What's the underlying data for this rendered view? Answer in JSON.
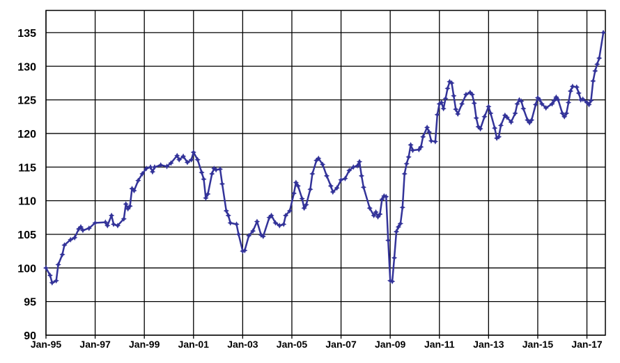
{
  "chart_data": {
    "type": "line",
    "title": "",
    "xlabel": "",
    "ylabel": "",
    "ylim": [
      90,
      138.3
    ],
    "xlim": [
      "1995-01",
      "2017-10"
    ],
    "grid": true,
    "line_color": "#333399",
    "marker": "star",
    "yticks": [
      90,
      95,
      100,
      105,
      110,
      115,
      120,
      125,
      130,
      135
    ],
    "xticks": [
      {
        "date": "1995-01",
        "label": "Jan-95"
      },
      {
        "date": "1997-01",
        "label": "Jan-97"
      },
      {
        "date": "1999-01",
        "label": "Jan-99"
      },
      {
        "date": "2001-01",
        "label": "Jan-01"
      },
      {
        "date": "2003-01",
        "label": "Jan-03"
      },
      {
        "date": "2005-01",
        "label": "Jan-05"
      },
      {
        "date": "2007-01",
        "label": "Jan-07"
      },
      {
        "date": "2009-01",
        "label": "Jan-09"
      },
      {
        "date": "2011-01",
        "label": "Jan-11"
      },
      {
        "date": "2013-01",
        "label": "Jan-13"
      },
      {
        "date": "2015-01",
        "label": "Jan-15"
      },
      {
        "date": "2017-01",
        "label": "Jan-17"
      }
    ],
    "points": [
      [
        "1995-01",
        100
      ],
      [
        "1995-03",
        98.9
      ],
      [
        "1995-04",
        97.8
      ],
      [
        "1995-06",
        98.1
      ],
      [
        "1995-07",
        100.5
      ],
      [
        "1995-09",
        102
      ],
      [
        "1995-10",
        103.4
      ],
      [
        "1996-01",
        104.2
      ],
      [
        "1996-03",
        104.5
      ],
      [
        "1996-05",
        105.8
      ],
      [
        "1996-06",
        106.1
      ],
      [
        "1996-07",
        105.6
      ],
      [
        "1996-10",
        105.9
      ],
      [
        "1997-01",
        106.7
      ],
      [
        "1997-06",
        106.8
      ],
      [
        "1997-07",
        106.3
      ],
      [
        "1997-09",
        107.8
      ],
      [
        "1997-10",
        106.5
      ],
      [
        "1997-12",
        106.3
      ],
      [
        "1998-03",
        107.3
      ],
      [
        "1998-04",
        109.5
      ],
      [
        "1998-05",
        108.8
      ],
      [
        "1998-06",
        109.2
      ],
      [
        "1998-07",
        111.8
      ],
      [
        "1998-08",
        111.5
      ],
      [
        "1998-10",
        113
      ],
      [
        "1998-12",
        114
      ],
      [
        "1999-02",
        114.8
      ],
      [
        "1999-04",
        115
      ],
      [
        "1999-05",
        114.3
      ],
      [
        "1999-06",
        115
      ],
      [
        "1999-09",
        115.3
      ],
      [
        "1999-12",
        115.1
      ],
      [
        "2000-02",
        115.6
      ],
      [
        "2000-05",
        116.7
      ],
      [
        "2000-06",
        116.1
      ],
      [
        "2000-08",
        116.6
      ],
      [
        "2000-10",
        115.7
      ],
      [
        "2000-12",
        116.1
      ],
      [
        "2001-01",
        117.2
      ],
      [
        "2001-03",
        116.1
      ],
      [
        "2001-05",
        114.2
      ],
      [
        "2001-06",
        113.2
      ],
      [
        "2001-07",
        110.4
      ],
      [
        "2001-08",
        111
      ],
      [
        "2001-10",
        114
      ],
      [
        "2001-11",
        114.8
      ],
      [
        "2001-12",
        114.6
      ],
      [
        "2002-02",
        114.7
      ],
      [
        "2002-03",
        112.5
      ],
      [
        "2002-05",
        108.5
      ],
      [
        "2002-06",
        107.8
      ],
      [
        "2002-07",
        106.7
      ],
      [
        "2002-10",
        106.5
      ],
      [
        "2002-11",
        105
      ],
      [
        "2003-01",
        102.5
      ],
      [
        "2003-02",
        102.6
      ],
      [
        "2003-04",
        104.8
      ],
      [
        "2003-06",
        105.5
      ],
      [
        "2003-08",
        106.9
      ],
      [
        "2003-10",
        104.9
      ],
      [
        "2003-11",
        104.7
      ],
      [
        "2004-02",
        107.5
      ],
      [
        "2004-03",
        107.8
      ],
      [
        "2004-05",
        106.7
      ],
      [
        "2004-07",
        106.3
      ],
      [
        "2004-09",
        106.5
      ],
      [
        "2004-10",
        107.8
      ],
      [
        "2004-12",
        108.5
      ],
      [
        "2005-02",
        111.1
      ],
      [
        "2005-03",
        112.7
      ],
      [
        "2005-04",
        112.2
      ],
      [
        "2005-06",
        110.3
      ],
      [
        "2005-07",
        108.9
      ],
      [
        "2005-08",
        109.4
      ],
      [
        "2005-10",
        111.7
      ],
      [
        "2005-11",
        114
      ],
      [
        "2006-01",
        116
      ],
      [
        "2006-02",
        116.3
      ],
      [
        "2006-04",
        115.4
      ],
      [
        "2006-06",
        113.7
      ],
      [
        "2006-08",
        112.2
      ],
      [
        "2006-09",
        111.3
      ],
      [
        "2006-11",
        111.9
      ],
      [
        "2007-01",
        113.1
      ],
      [
        "2007-03",
        113.3
      ],
      [
        "2007-05",
        114.5
      ],
      [
        "2007-07",
        115
      ],
      [
        "2007-09",
        115.2
      ],
      [
        "2007-10",
        115.8
      ],
      [
        "2007-11",
        113.7
      ],
      [
        "2007-12",
        112
      ],
      [
        "2008-03",
        108.9
      ],
      [
        "2008-05",
        107.8
      ],
      [
        "2008-06",
        108.3
      ],
      [
        "2008-07",
        107.6
      ],
      [
        "2008-08",
        108
      ],
      [
        "2008-09",
        110.2
      ],
      [
        "2008-10",
        110.7
      ],
      [
        "2008-11",
        110.6
      ],
      [
        "2008-12",
        104.1
      ],
      [
        "2009-01",
        98.1
      ],
      [
        "2009-02",
        98
      ],
      [
        "2009-03",
        101.5
      ],
      [
        "2009-04",
        105.4
      ],
      [
        "2009-05",
        106.1
      ],
      [
        "2009-06",
        106.6
      ],
      [
        "2009-07",
        109
      ],
      [
        "2009-08",
        114
      ],
      [
        "2009-09",
        115.5
      ],
      [
        "2009-10",
        116.5
      ],
      [
        "2009-11",
        118.3
      ],
      [
        "2009-12",
        117.5
      ],
      [
        "2010-03",
        117.6
      ],
      [
        "2010-04",
        118
      ],
      [
        "2010-05",
        119.5
      ],
      [
        "2010-07",
        120.9
      ],
      [
        "2010-08",
        120.2
      ],
      [
        "2010-09",
        118.9
      ],
      [
        "2010-11",
        118.8
      ],
      [
        "2010-12",
        122.8
      ],
      [
        "2011-01",
        124.4
      ],
      [
        "2011-02",
        124.6
      ],
      [
        "2011-03",
        123.7
      ],
      [
        "2011-04",
        125.2
      ],
      [
        "2011-05",
        126.7
      ],
      [
        "2011-06",
        127.7
      ],
      [
        "2011-07",
        127.5
      ],
      [
        "2011-08",
        125.6
      ],
      [
        "2011-09",
        123.6
      ],
      [
        "2011-10",
        122.9
      ],
      [
        "2011-12",
        124.4
      ],
      [
        "2012-02",
        125.8
      ],
      [
        "2012-04",
        126.1
      ],
      [
        "2012-05",
        125.8
      ],
      [
        "2012-06",
        124.5
      ],
      [
        "2012-07",
        122.3
      ],
      [
        "2012-08",
        121
      ],
      [
        "2012-09",
        120.7
      ],
      [
        "2012-11",
        122.5
      ],
      [
        "2013-01",
        124
      ],
      [
        "2013-02",
        123
      ],
      [
        "2013-04",
        120.8
      ],
      [
        "2013-05",
        119.3
      ],
      [
        "2013-06",
        119.5
      ],
      [
        "2013-07",
        121.2
      ],
      [
        "2013-09",
        122.7
      ],
      [
        "2013-10",
        122.4
      ],
      [
        "2013-12",
        121.7
      ],
      [
        "2014-02",
        123
      ],
      [
        "2014-03",
        124.4
      ],
      [
        "2014-04",
        125
      ],
      [
        "2014-05",
        124.8
      ],
      [
        "2014-06",
        123.7
      ],
      [
        "2014-08",
        122
      ],
      [
        "2014-09",
        121.6
      ],
      [
        "2014-10",
        122
      ],
      [
        "2014-12",
        124.3
      ],
      [
        "2015-01",
        125.3
      ],
      [
        "2015-02",
        125
      ],
      [
        "2015-03",
        124.4
      ],
      [
        "2015-05",
        123.8
      ],
      [
        "2015-08",
        124.4
      ],
      [
        "2015-09",
        124.9
      ],
      [
        "2015-10",
        125.4
      ],
      [
        "2015-11",
        125
      ],
      [
        "2016-01",
        123
      ],
      [
        "2016-02",
        122.5
      ],
      [
        "2016-03",
        123
      ],
      [
        "2016-04",
        124.6
      ],
      [
        "2016-05",
        126.3
      ],
      [
        "2016-06",
        127
      ],
      [
        "2016-08",
        126.9
      ],
      [
        "2016-09",
        126
      ],
      [
        "2016-10",
        125
      ],
      [
        "2016-11",
        125.1
      ],
      [
        "2017-01",
        124.6
      ],
      [
        "2017-02",
        124.3
      ],
      [
        "2017-03",
        124.9
      ],
      [
        "2017-04",
        127.8
      ],
      [
        "2017-05",
        129.3
      ],
      [
        "2017-06",
        130.3
      ],
      [
        "2017-07",
        131.2
      ],
      [
        "2017-09",
        135
      ]
    ]
  }
}
